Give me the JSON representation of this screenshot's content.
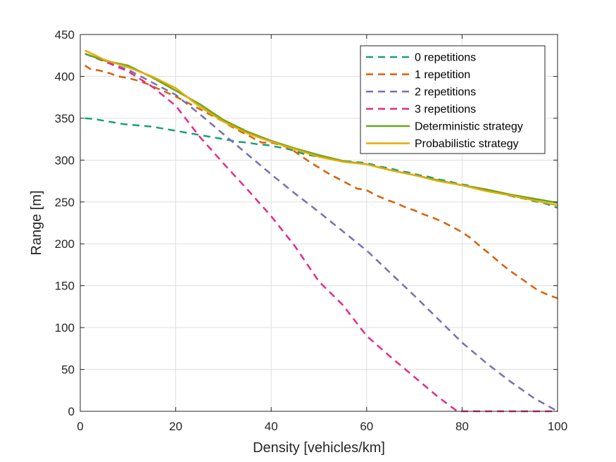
{
  "chart_data": {
    "type": "line",
    "title": "",
    "xlabel": "Density [vehicles/km]",
    "ylabel": "Range [m]",
    "xlim": [
      0,
      100
    ],
    "ylim": [
      0,
      450
    ],
    "xticks": [
      "0",
      "20",
      "40",
      "60",
      "80",
      "100"
    ],
    "yticks": [
      "0",
      "50",
      "100",
      "150",
      "200",
      "250",
      "300",
      "350",
      "400",
      "450"
    ],
    "grid": true,
    "legend_position": "top-right",
    "series": [
      {
        "name": "0 repetitions",
        "color": "#1b9e77",
        "style": "dashed",
        "x": [
          1,
          3,
          5,
          7,
          9,
          11,
          13,
          15,
          17,
          19,
          21,
          23,
          25,
          27,
          29,
          31,
          33,
          35,
          37,
          39,
          41,
          43,
          45,
          47,
          49,
          51,
          53,
          55,
          57,
          59,
          61,
          63,
          65,
          67,
          69,
          71,
          73,
          75,
          77,
          79,
          81,
          83,
          85,
          87,
          89,
          91,
          93,
          95,
          97,
          99,
          100
        ],
        "y": [
          350,
          349,
          347,
          345,
          343,
          342,
          341,
          340,
          338,
          336,
          334,
          332,
          330,
          328,
          326,
          324,
          322,
          321,
          319,
          318,
          316,
          314,
          311,
          307,
          305,
          303,
          301,
          299,
          298,
          297,
          295,
          292,
          290,
          287,
          285,
          282,
          280,
          277,
          275,
          272,
          270,
          267,
          265,
          262,
          259,
          256,
          254,
          251,
          249,
          245,
          243
        ]
      },
      {
        "name": "1 repetition",
        "color": "#d95f02",
        "style": "dashed",
        "x": [
          1,
          2,
          4,
          6,
          8,
          10,
          12,
          14,
          16,
          18,
          20,
          22,
          24,
          26,
          28,
          30,
          32,
          34,
          36,
          38,
          40,
          42,
          44,
          46,
          48,
          50,
          52,
          54,
          56,
          58,
          60,
          62,
          64,
          66,
          68,
          70,
          72,
          74,
          76,
          78,
          80,
          82,
          84,
          86,
          88,
          90,
          92,
          94,
          96,
          98,
          100
        ],
        "y": [
          413,
          409,
          407,
          404,
          400,
          398,
          395,
          391,
          386,
          381,
          376,
          370,
          364,
          358,
          352,
          346,
          339,
          333,
          327,
          321,
          321,
          318,
          314,
          306,
          298,
          291,
          284,
          278,
          272,
          266,
          264,
          258,
          253,
          249,
          244,
          240,
          235,
          231,
          226,
          220,
          214,
          206,
          196,
          187,
          177,
          168,
          160,
          152,
          144,
          139,
          135
        ]
      },
      {
        "name": "2 repetitions",
        "color": "#7570b3",
        "style": "dashed",
        "x": [
          1,
          5,
          10,
          15,
          20,
          25,
          30,
          35,
          40,
          45,
          50,
          55,
          60,
          65,
          70,
          75,
          80,
          85,
          90,
          95,
          100
        ],
        "y": [
          427,
          418,
          408,
          393,
          378,
          355,
          331,
          307,
          283,
          260,
          238,
          215,
          192,
          165,
          138,
          110,
          82,
          58,
          36,
          16,
          0
        ]
      },
      {
        "name": "3 repetitions",
        "color": "#e7298a",
        "style": "dashed",
        "x": [
          1,
          5,
          10,
          15,
          20,
          25,
          30,
          35,
          40,
          45,
          50,
          55,
          60,
          65,
          70,
          75,
          79,
          80,
          85,
          90,
          95,
          100
        ],
        "y": [
          427,
          418,
          406,
          388,
          365,
          328,
          296,
          265,
          233,
          197,
          155,
          127,
          90,
          65,
          41,
          17,
          0,
          0,
          0,
          0,
          0,
          0
        ]
      },
      {
        "name": "Deterministic strategy",
        "color": "#66a61e",
        "style": "solid",
        "x": [
          1,
          5,
          10,
          15,
          20,
          25,
          30,
          35,
          40,
          45,
          50,
          55,
          60,
          65,
          70,
          75,
          80,
          85,
          90,
          95,
          100
        ],
        "y": [
          427,
          419,
          413,
          399,
          383,
          367,
          348,
          334,
          323,
          314,
          306,
          299,
          295,
          288,
          282,
          276,
          270,
          265,
          259,
          254,
          249
        ]
      },
      {
        "name": "Probabilistic strategy",
        "color": "#e6ab02",
        "style": "solid",
        "x": [
          1,
          5,
          10,
          15,
          20,
          25,
          30,
          35,
          40,
          45,
          50,
          55,
          60,
          65,
          70,
          75,
          80,
          85,
          90,
          95,
          100
        ],
        "y": [
          431,
          420,
          411,
          400,
          386,
          364,
          346,
          332,
          322,
          313,
          304,
          298,
          295,
          288,
          282,
          275,
          270,
          263,
          258,
          252,
          246
        ]
      }
    ]
  }
}
